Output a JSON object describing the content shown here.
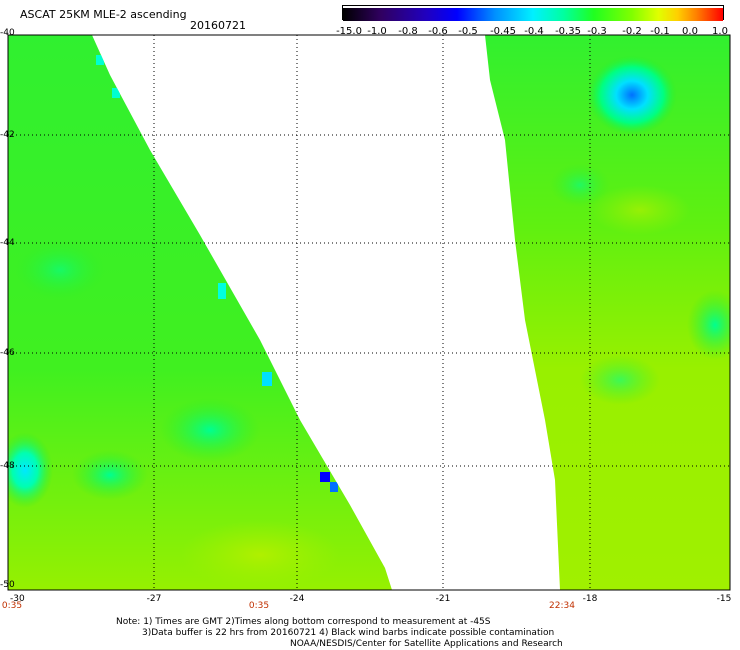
{
  "header": {
    "title": "ASCAT 25KM MLE-2 ascending",
    "date": "20160721"
  },
  "colorbar": {
    "labels": [
      "-15.0",
      "-1.0",
      "-0.8",
      "-0.6",
      "-0.5",
      "-0.45",
      "-0.4",
      "-0.35",
      "-0.3",
      "-0.2",
      "-0.1",
      "0.0",
      "1.0"
    ],
    "colors": [
      "#200030",
      "#3000a0",
      "#0000ff",
      "#0080ff",
      "#00e0ff",
      "#00ffc0",
      "#00ff60",
      "#40ff00",
      "#a0ff00",
      "#ffff00",
      "#ffa000",
      "#ff4000",
      "#ff0000"
    ]
  },
  "map": {
    "lat_labels": [
      "-40",
      "-42",
      "-44",
      "-46",
      "-48",
      "-50"
    ],
    "lon_labels": [
      "-27",
      "-24",
      "-21",
      "-18",
      "-15"
    ],
    "corner_left": "-30",
    "time_labels": [
      "0:35",
      "0:35",
      "22:34"
    ],
    "colors": {
      "dominant_green": "#28f028",
      "yellow_green": "#a0f000",
      "cyan": "#00e0ff",
      "blue": "#0000ff"
    }
  },
  "notes": [
    "Note: 1) Times are GMT 2)Times along bottom correspond to measurement at -45S",
    "3)Data buffer is 22 hrs from 20160721 4) Black wind barbs indicate possible contamination",
    "NOAA/NESDIS/Center for Satellite Applications and Research"
  ]
}
